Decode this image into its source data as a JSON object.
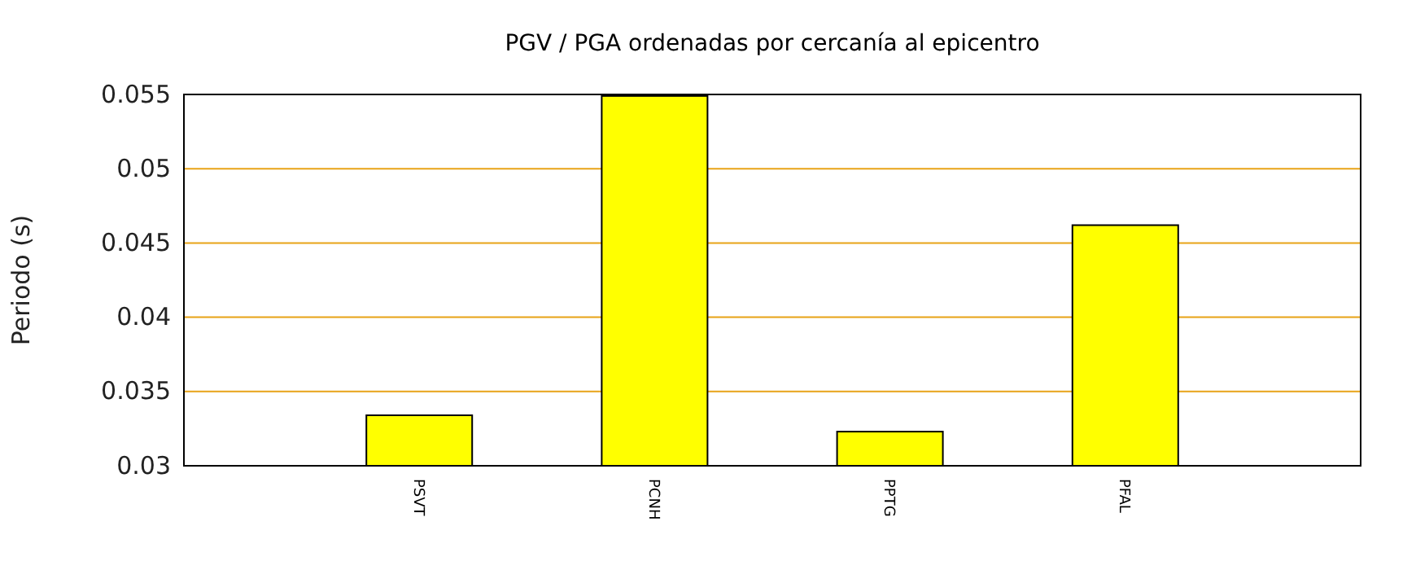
{
  "chart_data": {
    "type": "bar",
    "title": "PGV / PGA ordenadas por cercanía al epicentro",
    "ylabel": "Periodo (s)",
    "categories": [
      "PSVT",
      "PCNH",
      "PPTG",
      "PFAL"
    ],
    "values": [
      0.0334,
      0.0549,
      0.0323,
      0.0462
    ],
    "color": "#ffff00",
    "ylim": [
      0.03,
      0.055
    ],
    "yticks": [
      0.03,
      0.035,
      0.04,
      0.045,
      0.05,
      0.055
    ],
    "grid": "y"
  }
}
